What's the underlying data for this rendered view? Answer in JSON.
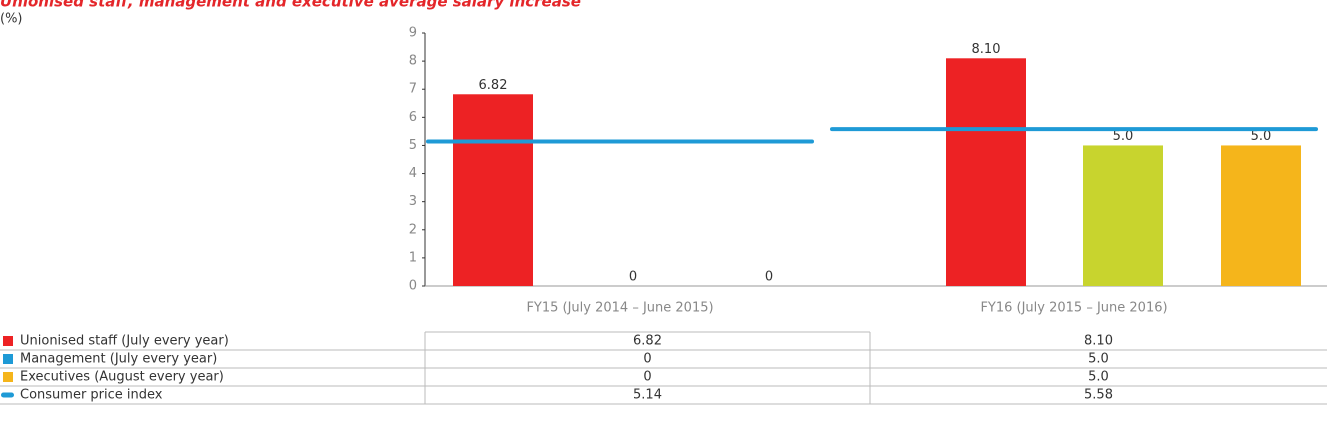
{
  "chart_data": {
    "type": "bar",
    "title": "Unionised staff, management and executive average salary increase",
    "subtitle": "(%)",
    "categories": [
      "FY15 (July 2014 – June 2015)",
      "FY16 (July 2015 – June 2016)"
    ],
    "ylim": [
      0,
      9
    ],
    "yticks": [
      0,
      1,
      2,
      3,
      4,
      5,
      6,
      7,
      8,
      9
    ],
    "series": [
      {
        "name": "Unionised staff (July every year)",
        "type": "bar",
        "color": "#ed2224",
        "legend_color": "#ed2224",
        "values": [
          6.82,
          8.1
        ],
        "value_labels": [
          "6.82",
          "8.10"
        ]
      },
      {
        "name": "Management (July every year)",
        "type": "bar",
        "color": "#c8d42e",
        "legend_color": "#1e9ad6",
        "values": [
          0,
          5
        ],
        "value_labels": [
          "0",
          "5.0"
        ]
      },
      {
        "name": "Executives (August every year)",
        "type": "bar",
        "color": "#f5b51b",
        "legend_color": "#f5b51b",
        "values": [
          0,
          5
        ],
        "value_labels": [
          "0",
          "5.0"
        ]
      },
      {
        "name": "Consumer price index",
        "type": "line",
        "color": "#1e9ad6",
        "legend_color": "#1e9ad6",
        "values": [
          5.14,
          5.58
        ]
      }
    ]
  }
}
